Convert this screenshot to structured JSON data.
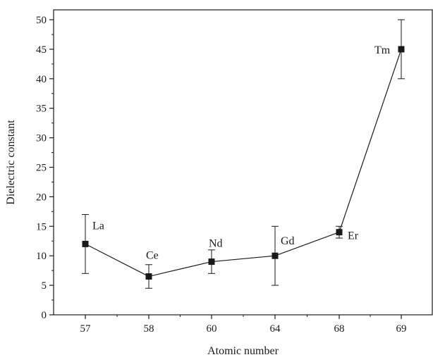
{
  "chart_data": {
    "type": "line",
    "title": "",
    "xlabel": "Atomic number",
    "ylabel": "Dielectric constant",
    "categories": [
      "57",
      "58",
      "60",
      "64",
      "68",
      "69"
    ],
    "ylim": [
      0,
      50
    ],
    "yticks": [
      0,
      5,
      10,
      15,
      20,
      25,
      30,
      35,
      40,
      45,
      50
    ],
    "grid": false,
    "legend": "none",
    "series": [
      {
        "values": [
          12,
          6.5,
          9,
          10,
          14,
          45
        ],
        "error_low": [
          7,
          4.5,
          7,
          5,
          13,
          40
        ],
        "error_high": [
          17,
          8.5,
          11,
          15,
          15,
          50
        ],
        "point_labels": [
          "La",
          "Ce",
          "Nd",
          "Gd",
          "Er",
          "Tm"
        ],
        "color": "#1a1a1a"
      }
    ]
  }
}
